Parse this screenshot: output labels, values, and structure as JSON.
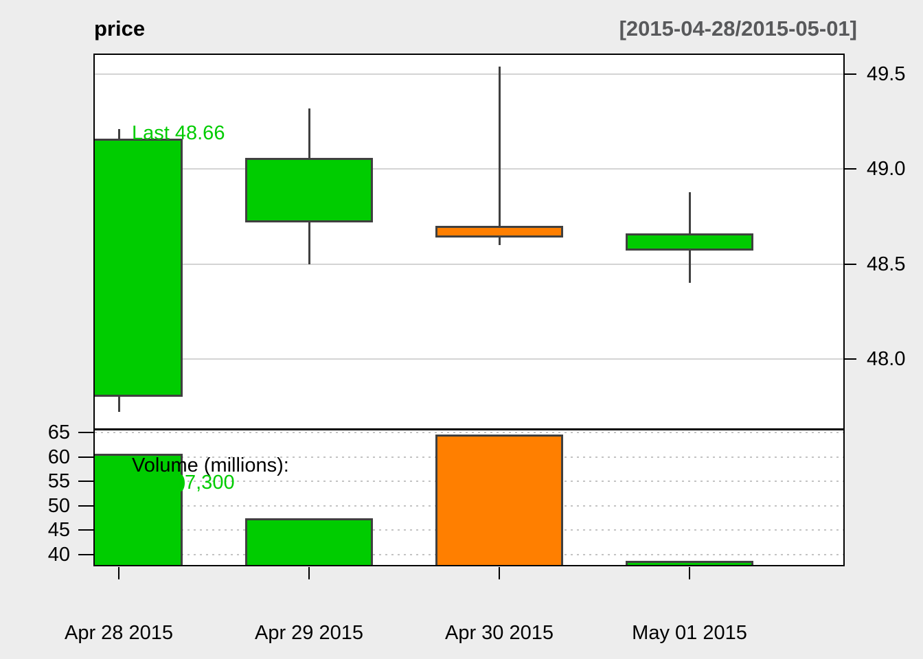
{
  "header": {
    "title": "price",
    "date_range": "[2015-04-28/2015-05-01]"
  },
  "price_panel": {
    "last_label": "Last 48.66"
  },
  "volume_panel": {
    "label": "Volume (millions):",
    "last_value_visible": "7,300"
  },
  "colors": {
    "up": "#00cc00",
    "down": "#ff7f00",
    "wick": "#404040",
    "grid_solid": "#d4d4d4",
    "grid_dotted": "#c3c3c3",
    "background": "#ededed",
    "panel": "#ffffff",
    "date_range_text": "#58595b",
    "annotation_green": "#00cc00"
  },
  "chart_data": [
    {
      "type": "candlestick",
      "title": "price",
      "subtitle": "[2015-04-28/2015-05-01]",
      "categories": [
        "Apr 28 2015",
        "Apr 29 2015",
        "Apr 30 2015",
        "May 01 2015"
      ],
      "series": [
        {
          "name": "OHLC",
          "ohlc": [
            {
              "open": 47.8,
              "high": 49.21,
              "low": 47.72,
              "close": 49.16,
              "direction": "up"
            },
            {
              "open": 48.72,
              "high": 49.32,
              "low": 48.5,
              "close": 49.06,
              "direction": "up"
            },
            {
              "open": 48.7,
              "high": 49.54,
              "low": 48.6,
              "close": 48.64,
              "direction": "down"
            },
            {
              "open": 48.57,
              "high": 48.88,
              "low": 48.4,
              "close": 48.66,
              "direction": "up"
            }
          ]
        }
      ],
      "last": 48.66,
      "annotation": "Last 48.66",
      "yticks": [
        49.5,
        49.0,
        48.5,
        48.0
      ],
      "ylim": [
        47.63,
        49.6
      ],
      "y_axis_position": "right",
      "grid": "solid"
    },
    {
      "type": "bar",
      "title": "Volume (millions):",
      "categories": [
        "Apr 28 2015",
        "Apr 29 2015",
        "Apr 30 2015",
        "May 01 2015"
      ],
      "values": [
        60.6,
        47.5,
        64.6,
        38.7
      ],
      "directions": [
        "up",
        "up",
        "down",
        "up"
      ],
      "annotation_visible": "7,300",
      "yticks": [
        65,
        60,
        55,
        50,
        45,
        40
      ],
      "ylim": [
        37.9,
        65.6
      ],
      "y_axis_position": "left",
      "grid": "dotted"
    }
  ]
}
